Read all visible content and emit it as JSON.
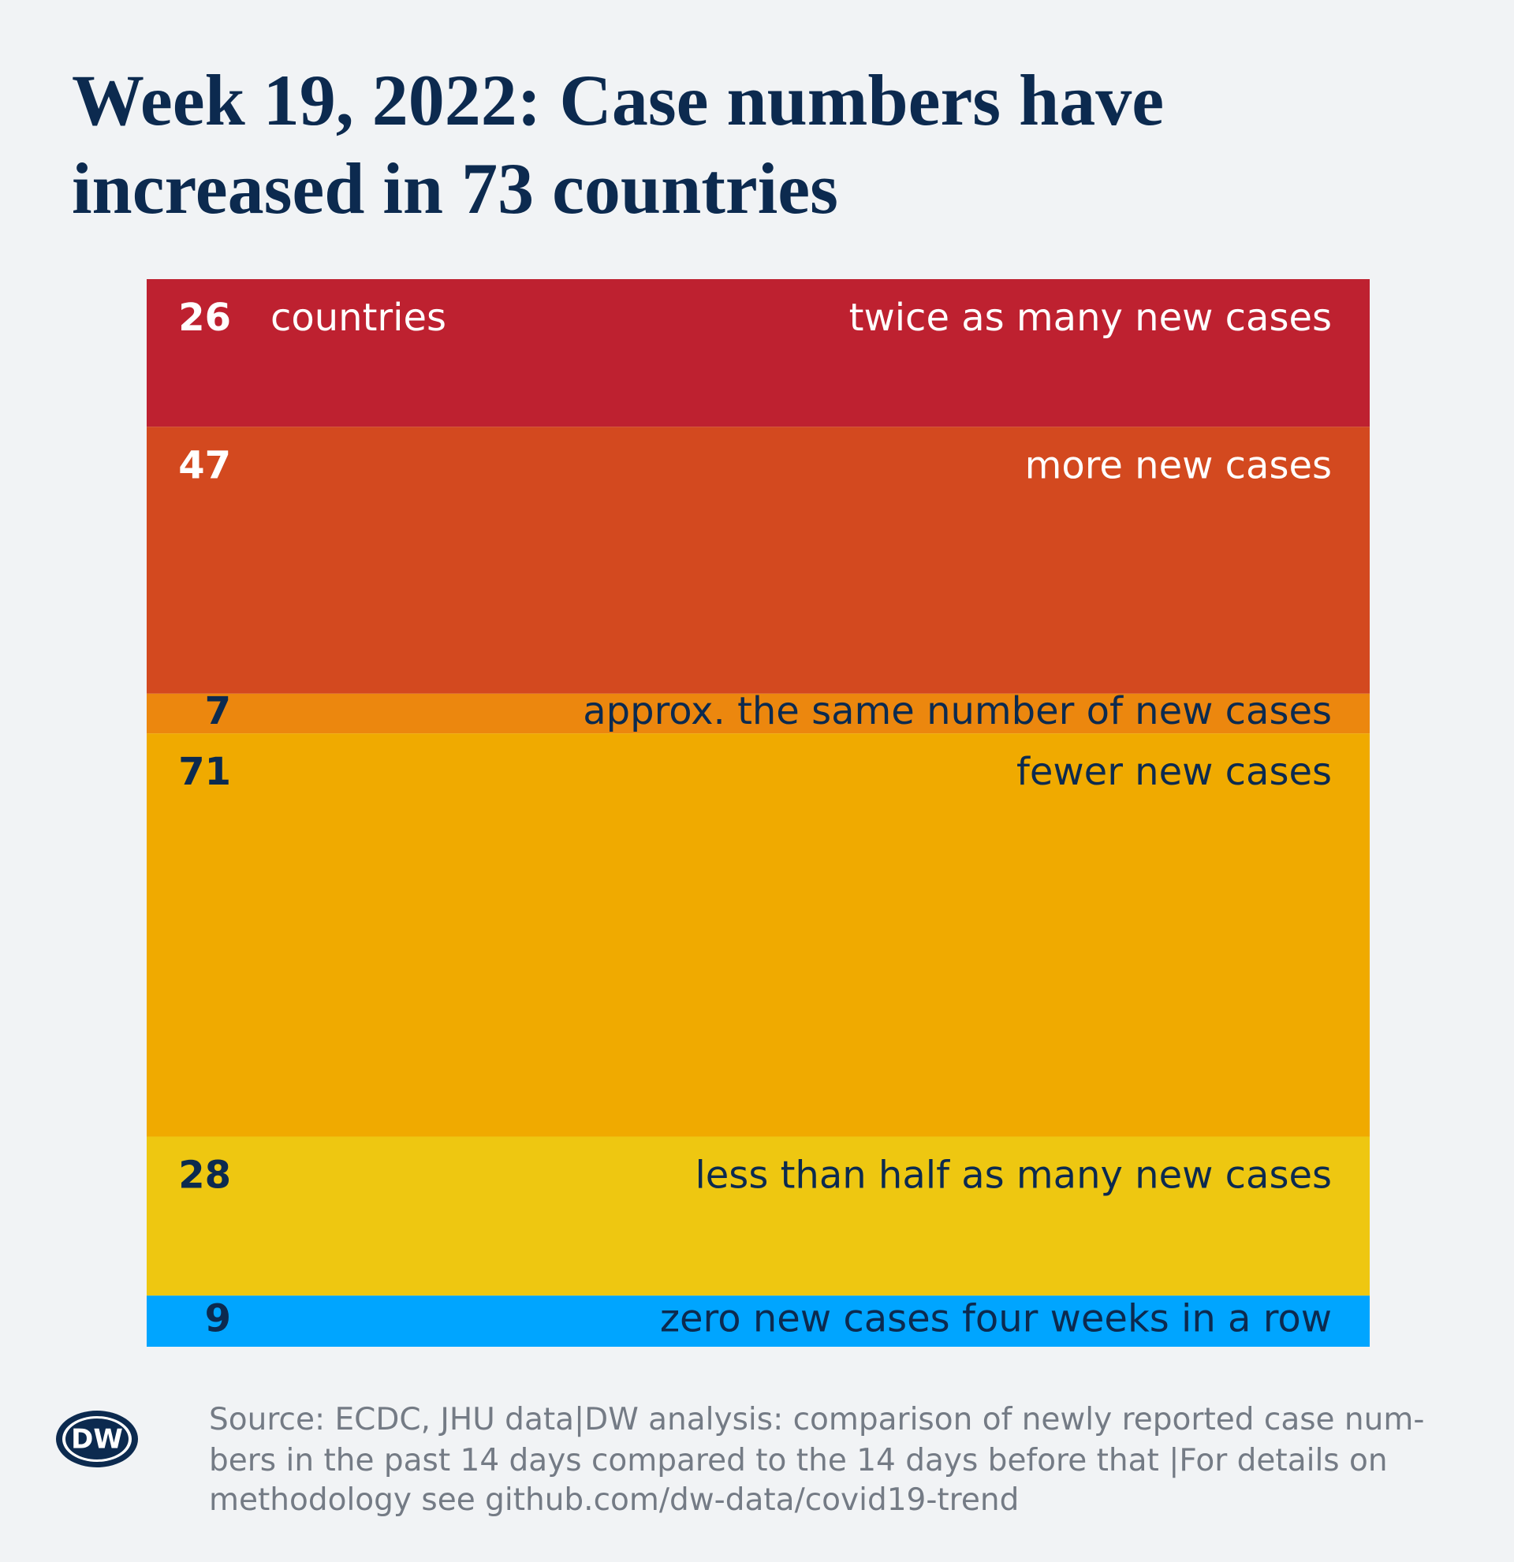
{
  "chart_data": {
    "type": "stacked-bar",
    "title": [
      "Week 19, 2022: Case numbers have",
      "increased in 73 countries"
    ],
    "unit_label": "countries",
    "categories": [
      "twice as many new cases",
      "more new cases",
      "approx. the same number of new cases",
      "fewer new cases",
      "less than half as many new cases",
      "zero new cases four weeks in a row"
    ],
    "values": [
      26,
      47,
      7,
      71,
      28,
      9
    ],
    "colors": [
      "#be2130",
      "#d3491f",
      "#ec870e",
      "#f0aa00",
      "#eec711",
      "#00a5ff"
    ],
    "label_colors": [
      "#ffffff",
      "#ffffff",
      "#0c2a4f",
      "#0c2a4f",
      "#0c2a4f",
      "#0c2a4f"
    ],
    "source": [
      "Source: ECDC, JHU data|DW analysis: comparison of newly reported case num-",
      "bers in the past 14 days compared to the 14 days before that |For details on",
      "methodology see github.com/dw-data/covid19-trend"
    ],
    "logo": "DW"
  }
}
